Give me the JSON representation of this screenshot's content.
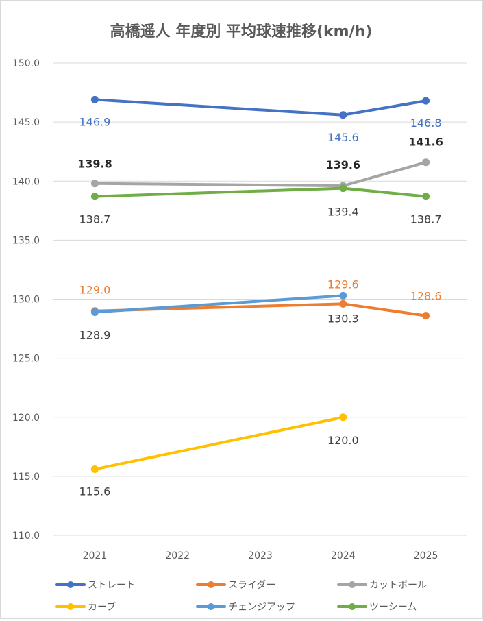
{
  "chart_data": {
    "type": "line",
    "title": "高橋遥人 年度別 平均球速推移(km/h)",
    "xlabel": "",
    "ylabel": "",
    "categories": [
      "2021",
      "2022",
      "2023",
      "2024",
      "2025"
    ],
    "ylim": [
      110.0,
      150.0
    ],
    "y_ticks": [
      "110.0",
      "115.0",
      "120.0",
      "125.0",
      "130.0",
      "135.0",
      "140.0",
      "145.0",
      "150.0"
    ],
    "grid": true,
    "legend_position": "bottom",
    "series": [
      {
        "name": "ストレート",
        "color": "#4472c4",
        "values": [
          146.9,
          null,
          null,
          145.6,
          146.8
        ]
      },
      {
        "name": "スライダー",
        "color": "#ed7d31",
        "values": [
          129.0,
          null,
          null,
          129.6,
          128.6
        ]
      },
      {
        "name": "カットボール",
        "color": "#a5a5a5",
        "values": [
          139.8,
          null,
          null,
          139.6,
          141.6
        ]
      },
      {
        "name": "カーブ",
        "color": "#ffc000",
        "values": [
          115.6,
          null,
          null,
          120.0,
          null
        ]
      },
      {
        "name": "チェンジアップ",
        "color": "#5b9bd5",
        "values": [
          128.9,
          null,
          null,
          130.3,
          null
        ]
      },
      {
        "name": "ツーシーム",
        "color": "#70ad47",
        "values": [
          138.7,
          null,
          null,
          139.4,
          138.7
        ]
      }
    ],
    "data_labels": [
      {
        "series": 0,
        "index": 0,
        "text": "146.9",
        "color": "#4472c4"
      },
      {
        "series": 0,
        "index": 3,
        "text": "145.6",
        "color": "#4472c4"
      },
      {
        "series": 0,
        "index": 4,
        "text": "146.8",
        "color": "#4472c4"
      },
      {
        "series": 1,
        "index": 0,
        "text": "129.0",
        "color": "#ed7d31"
      },
      {
        "series": 1,
        "index": 3,
        "text": "129.6",
        "color": "#ed7d31"
      },
      {
        "series": 1,
        "index": 4,
        "text": "128.6",
        "color": "#ed7d31"
      },
      {
        "series": 2,
        "index": 0,
        "text": "139.8",
        "color": "#262626"
      },
      {
        "series": 2,
        "index": 3,
        "text": "139.6",
        "color": "#262626"
      },
      {
        "series": 2,
        "index": 4,
        "text": "141.6",
        "color": "#262626"
      },
      {
        "series": 3,
        "index": 0,
        "text": "115.6",
        "color": "#404040"
      },
      {
        "series": 3,
        "index": 3,
        "text": "120.0",
        "color": "#404040"
      },
      {
        "series": 4,
        "index": 0,
        "text": "128.9",
        "color": "#404040"
      },
      {
        "series": 4,
        "index": 3,
        "text": "130.3",
        "color": "#404040"
      },
      {
        "series": 5,
        "index": 0,
        "text": "138.7",
        "color": "#404040"
      },
      {
        "series": 5,
        "index": 3,
        "text": "139.4",
        "color": "#404040"
      },
      {
        "series": 5,
        "index": 4,
        "text": "138.7",
        "color": "#404040"
      }
    ]
  }
}
